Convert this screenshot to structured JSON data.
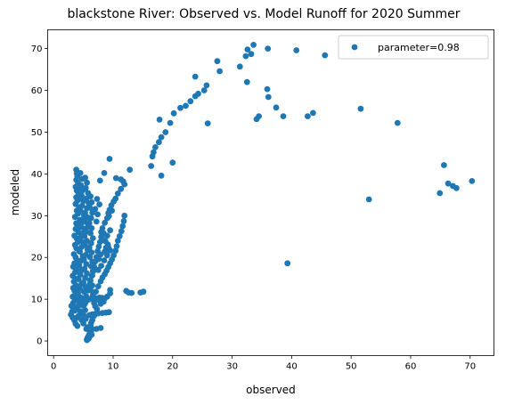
{
  "chart_data": {
    "type": "scatter",
    "title": "blackstone River: Observed vs. Model Runoff for 2020 Summer",
    "xlabel": "observed",
    "ylabel": "modeled",
    "xlim": [
      -1,
      74
    ],
    "ylim": [
      -3.5,
      74.5
    ],
    "xticks": [
      "0",
      "10",
      "20",
      "30",
      "40",
      "50",
      "60",
      "70"
    ],
    "yticks": [
      "0",
      "10",
      "20",
      "30",
      "40",
      "50",
      "60",
      "70"
    ],
    "grid": false,
    "legend_position": "top-right",
    "colors": {
      "series": "#1f77b4",
      "frame": "#000000",
      "legend_border": "#cccccc"
    },
    "series": [
      {
        "name": "parameter=0.98",
        "points": [
          [
            33.6,
            70.9
          ],
          [
            32.6,
            69.8
          ],
          [
            36.0,
            70.0
          ],
          [
            40.8,
            69.6
          ],
          [
            33.2,
            68.7
          ],
          [
            32.3,
            68.2
          ],
          [
            45.6,
            68.4
          ],
          [
            27.5,
            67.0
          ],
          [
            31.3,
            65.7
          ],
          [
            27.9,
            64.6
          ],
          [
            23.8,
            63.3
          ],
          [
            32.5,
            62.0
          ],
          [
            25.7,
            61.2
          ],
          [
            25.3,
            60.0
          ],
          [
            24.3,
            59.2
          ],
          [
            23.8,
            58.6
          ],
          [
            23.0,
            57.4
          ],
          [
            22.2,
            56.3
          ],
          [
            21.3,
            55.8
          ],
          [
            20.2,
            54.5
          ],
          [
            19.6,
            52.2
          ],
          [
            18.8,
            50.0
          ],
          [
            18.1,
            48.8
          ],
          [
            17.7,
            47.6
          ],
          [
            17.1,
            46.4
          ],
          [
            16.8,
            45.2
          ],
          [
            16.6,
            44.2
          ],
          [
            16.4,
            41.9
          ],
          [
            17.8,
            53.0
          ],
          [
            18.1,
            39.6
          ],
          [
            20.0,
            42.7
          ],
          [
            25.9,
            52.1
          ],
          [
            35.9,
            60.3
          ],
          [
            36.1,
            58.4
          ],
          [
            37.4,
            55.9
          ],
          [
            38.6,
            53.8
          ],
          [
            34.5,
            53.8
          ],
          [
            34.1,
            53.1
          ],
          [
            42.7,
            53.8
          ],
          [
            43.6,
            54.6
          ],
          [
            51.6,
            55.6
          ],
          [
            57.8,
            52.2
          ],
          [
            65.6,
            42.1
          ],
          [
            66.3,
            37.7
          ],
          [
            67.1,
            37.1
          ],
          [
            67.7,
            36.6
          ],
          [
            70.3,
            38.3
          ],
          [
            64.9,
            35.4
          ],
          [
            53.0,
            33.9
          ],
          [
            39.3,
            18.6
          ],
          [
            12.8,
            41.0
          ],
          [
            10.5,
            39.0
          ],
          [
            11.3,
            38.7
          ],
          [
            11.7,
            38.2
          ],
          [
            11.9,
            37.5
          ],
          [
            11.3,
            36.4
          ],
          [
            10.8,
            35.3
          ],
          [
            10.4,
            34.1
          ],
          [
            10.1,
            33.4
          ],
          [
            9.7,
            32.5
          ],
          [
            9.4,
            31.4
          ],
          [
            9.2,
            30.6
          ],
          [
            9.0,
            29.4
          ],
          [
            8.6,
            28.3
          ],
          [
            8.2,
            27.0
          ],
          [
            8.4,
            25.8
          ],
          [
            8.0,
            24.9
          ],
          [
            7.8,
            23.7
          ],
          [
            7.6,
            22.6
          ],
          [
            7.4,
            21.5
          ],
          [
            7.2,
            20.1
          ],
          [
            7.0,
            19.0
          ],
          [
            6.8,
            17.8
          ],
          [
            6.6,
            16.7
          ],
          [
            6.5,
            15.7
          ],
          [
            6.2,
            14.5
          ],
          [
            6.0,
            13.4
          ],
          [
            5.8,
            12.1
          ],
          [
            9.4,
            43.6
          ],
          [
            8.5,
            40.2
          ],
          [
            7.8,
            38.4
          ],
          [
            9.5,
            26.5
          ],
          [
            9.0,
            25.2
          ],
          [
            8.7,
            23.9
          ],
          [
            9.2,
            22.5
          ],
          [
            9.5,
            21.7
          ],
          [
            9.0,
            20.5
          ],
          [
            8.5,
            19.3
          ],
          [
            8.0,
            18.0
          ],
          [
            7.5,
            17.0
          ],
          [
            9.3,
            29.9
          ],
          [
            9.8,
            31.2
          ],
          [
            11.8,
            28.7
          ],
          [
            11.9,
            30.0
          ],
          [
            11.6,
            27.5
          ],
          [
            11.4,
            26.3
          ],
          [
            11.1,
            25.1
          ],
          [
            10.8,
            24.0
          ],
          [
            10.6,
            22.7
          ],
          [
            10.4,
            21.6
          ],
          [
            10.1,
            20.5
          ],
          [
            9.8,
            19.5
          ],
          [
            9.5,
            18.6
          ],
          [
            9.2,
            17.7
          ],
          [
            8.9,
            16.8
          ],
          [
            8.6,
            16.0
          ],
          [
            8.2,
            15.2
          ],
          [
            9.5,
            12.2
          ],
          [
            9.5,
            11.4
          ],
          [
            9.0,
            10.6
          ],
          [
            8.6,
            10.2
          ],
          [
            8.1,
            10.3
          ],
          [
            7.7,
            10.4
          ],
          [
            7.2,
            10.2
          ],
          [
            6.8,
            10.0
          ],
          [
            6.4,
            10.2
          ],
          [
            6.0,
            10.0
          ],
          [
            5.6,
            9.7
          ],
          [
            5.3,
            9.0
          ],
          [
            5.1,
            8.6
          ],
          [
            12.2,
            12.0
          ],
          [
            12.6,
            11.6
          ],
          [
            13.1,
            11.5
          ],
          [
            14.6,
            11.6
          ],
          [
            15.1,
            11.8
          ],
          [
            9.3,
            6.9
          ],
          [
            8.8,
            6.8
          ],
          [
            8.2,
            6.7
          ],
          [
            7.5,
            6.6
          ],
          [
            7.0,
            6.5
          ],
          [
            6.5,
            6.4
          ],
          [
            6.0,
            6.2
          ],
          [
            5.7,
            3.3
          ],
          [
            5.5,
            2.9
          ],
          [
            6.0,
            2.6
          ],
          [
            6.5,
            2.8
          ],
          [
            7.2,
            2.9
          ],
          [
            7.9,
            3.1
          ],
          [
            6.8,
            6.0
          ],
          [
            6.5,
            5.0
          ],
          [
            6.3,
            4.3
          ],
          [
            6.2,
            3.6
          ],
          [
            6.2,
            3.0
          ],
          [
            6.3,
            2.5
          ],
          [
            6.2,
            2.0
          ],
          [
            6.0,
            1.6
          ],
          [
            5.9,
            1.3
          ],
          [
            5.8,
            1.0
          ],
          [
            5.7,
            0.7
          ],
          [
            5.6,
            0.4
          ],
          [
            5.6,
            0.2
          ],
          [
            5.9,
            0.6
          ],
          [
            6.1,
            1.1
          ],
          [
            6.4,
            1.5
          ],
          [
            3.8,
            41.0
          ],
          [
            3.9,
            40.1
          ],
          [
            4.0,
            39.5
          ],
          [
            3.8,
            38.6
          ],
          [
            4.1,
            37.8
          ],
          [
            3.7,
            36.9
          ],
          [
            3.9,
            36.0
          ],
          [
            4.2,
            35.3
          ],
          [
            3.8,
            34.4
          ],
          [
            4.0,
            33.6
          ],
          [
            3.7,
            32.8
          ],
          [
            4.3,
            32.0
          ],
          [
            3.9,
            31.2
          ],
          [
            4.1,
            30.5
          ],
          [
            3.6,
            29.7
          ],
          [
            4.4,
            29.0
          ],
          [
            3.8,
            28.2
          ],
          [
            4.0,
            27.5
          ],
          [
            3.7,
            26.8
          ],
          [
            4.2,
            26.0
          ],
          [
            3.5,
            25.2
          ],
          [
            3.9,
            24.5
          ],
          [
            4.1,
            23.7
          ],
          [
            3.6,
            23.0
          ],
          [
            3.8,
            22.2
          ],
          [
            4.3,
            21.5
          ],
          [
            3.4,
            20.8
          ],
          [
            3.7,
            20.0
          ],
          [
            4.0,
            19.3
          ],
          [
            3.5,
            18.6
          ],
          [
            3.3,
            17.8
          ],
          [
            3.8,
            17.1
          ],
          [
            3.6,
            16.4
          ],
          [
            3.2,
            15.6
          ],
          [
            3.9,
            14.9
          ],
          [
            3.4,
            14.2
          ],
          [
            3.7,
            13.4
          ],
          [
            3.3,
            12.7
          ],
          [
            3.5,
            12.0
          ],
          [
            3.8,
            11.3
          ],
          [
            3.2,
            10.6
          ],
          [
            3.6,
            9.9
          ],
          [
            3.3,
            9.1
          ],
          [
            3.0,
            8.4
          ],
          [
            3.4,
            7.7
          ],
          [
            3.1,
            7.0
          ],
          [
            2.9,
            6.3
          ],
          [
            3.2,
            5.6
          ],
          [
            3.5,
            4.9
          ],
          [
            3.7,
            4.1
          ],
          [
            4.0,
            3.6
          ],
          [
            4.5,
            40.2
          ],
          [
            4.8,
            38.8
          ],
          [
            4.6,
            37.3
          ],
          [
            4.9,
            36.1
          ],
          [
            4.7,
            34.8
          ],
          [
            5.0,
            33.5
          ],
          [
            4.8,
            32.4
          ],
          [
            4.5,
            31.3
          ],
          [
            5.1,
            30.2
          ],
          [
            4.9,
            29.1
          ],
          [
            4.6,
            28.0
          ],
          [
            5.2,
            26.9
          ],
          [
            4.8,
            25.8
          ],
          [
            4.5,
            24.7
          ],
          [
            5.0,
            23.6
          ],
          [
            4.7,
            22.5
          ],
          [
            4.4,
            21.4
          ],
          [
            4.9,
            20.3
          ],
          [
            4.6,
            19.2
          ],
          [
            4.3,
            18.1
          ],
          [
            4.8,
            17.0
          ],
          [
            4.5,
            15.9
          ],
          [
            4.2,
            14.8
          ],
          [
            4.7,
            13.7
          ],
          [
            4.4,
            12.6
          ],
          [
            4.1,
            11.5
          ],
          [
            4.6,
            10.4
          ],
          [
            4.3,
            9.3
          ],
          [
            4.0,
            8.2
          ],
          [
            4.5,
            7.1
          ],
          [
            4.2,
            6.0
          ],
          [
            4.7,
            5.0
          ],
          [
            5.0,
            4.2
          ],
          [
            5.3,
            39.1
          ],
          [
            5.6,
            37.9
          ],
          [
            5.4,
            36.6
          ],
          [
            5.8,
            35.4
          ],
          [
            5.5,
            34.1
          ],
          [
            5.9,
            33.0
          ],
          [
            5.6,
            31.8
          ],
          [
            5.3,
            30.7
          ],
          [
            5.7,
            29.6
          ],
          [
            5.4,
            28.5
          ],
          [
            5.8,
            27.4
          ],
          [
            5.5,
            26.2
          ],
          [
            5.2,
            25.1
          ],
          [
            5.6,
            24.0
          ],
          [
            5.3,
            22.9
          ],
          [
            5.7,
            21.8
          ],
          [
            5.4,
            20.6
          ],
          [
            5.1,
            19.5
          ],
          [
            5.5,
            18.4
          ],
          [
            5.2,
            17.3
          ],
          [
            5.6,
            16.2
          ],
          [
            5.3,
            15.1
          ],
          [
            5.0,
            14.0
          ],
          [
            5.4,
            12.9
          ],
          [
            5.1,
            11.8
          ],
          [
            5.5,
            10.7
          ],
          [
            5.2,
            9.6
          ],
          [
            4.9,
            8.5
          ],
          [
            5.3,
            7.4
          ],
          [
            5.0,
            6.3
          ],
          [
            5.4,
            5.3
          ],
          [
            6.2,
            34.6
          ],
          [
            6.4,
            33.2
          ],
          [
            6.1,
            31.9
          ],
          [
            6.5,
            30.7
          ],
          [
            6.3,
            29.4
          ],
          [
            6.0,
            28.2
          ],
          [
            6.4,
            27.0
          ],
          [
            6.2,
            25.8
          ],
          [
            6.6,
            24.6
          ],
          [
            6.3,
            23.4
          ],
          [
            6.0,
            22.3
          ],
          [
            6.4,
            21.2
          ],
          [
            6.1,
            20.1
          ],
          [
            6.5,
            19.0
          ],
          [
            6.3,
            17.9
          ],
          [
            6.7,
            16.8
          ],
          [
            6.4,
            15.6
          ],
          [
            6.1,
            14.5
          ],
          [
            6.5,
            13.3
          ],
          [
            6.2,
            12.2
          ],
          [
            6.6,
            11.1
          ],
          [
            6.8,
            9.1
          ],
          [
            7.0,
            8.3
          ],
          [
            7.3,
            7.6
          ],
          [
            7.6,
            9.8
          ],
          [
            7.9,
            8.9
          ],
          [
            8.4,
            9.4
          ],
          [
            7.1,
            11.8
          ],
          [
            7.5,
            13.1
          ],
          [
            7.9,
            14.3
          ],
          [
            7.2,
            28.6
          ],
          [
            7.4,
            30.3
          ],
          [
            7.0,
            31.6
          ],
          [
            7.7,
            32.7
          ],
          [
            7.3,
            34.0
          ],
          [
            8.0,
            26.1
          ],
          [
            8.3,
            24.2
          ],
          [
            8.6,
            21.4
          ],
          [
            8.8,
            22.3
          ],
          [
            9.1,
            23.1
          ],
          [
            7.9,
            20.7
          ],
          [
            7.6,
            19.6
          ],
          [
            4.5,
            36.5
          ],
          [
            4.2,
            33.9
          ],
          [
            4.4,
            27.2
          ],
          [
            4.1,
            24.0
          ],
          [
            4.4,
            16.6
          ],
          [
            4.1,
            12.9
          ],
          [
            3.9,
            10.1
          ],
          [
            3.6,
            7.3
          ],
          [
            3.9,
            5.6
          ]
        ]
      }
    ]
  }
}
